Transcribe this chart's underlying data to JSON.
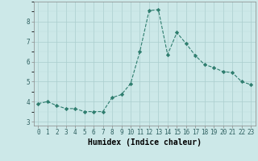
{
  "x": [
    0,
    1,
    2,
    3,
    4,
    5,
    6,
    7,
    8,
    9,
    10,
    11,
    12,
    13,
    14,
    15,
    16,
    17,
    18,
    19,
    20,
    21,
    22,
    23
  ],
  "y": [
    3.9,
    4.0,
    3.8,
    3.65,
    3.65,
    3.5,
    3.5,
    3.5,
    4.2,
    4.35,
    4.9,
    6.5,
    8.55,
    8.6,
    6.35,
    7.45,
    6.9,
    6.3,
    5.85,
    5.7,
    5.5,
    5.45,
    5.0,
    4.85
  ],
  "line_color": "#2e7d6e",
  "marker": "D",
  "marker_size": 2.2,
  "bg_color": "#cce8e8",
  "grid_color_major": "#aacece",
  "grid_color_minor": "#bbdddd",
  "xlabel": "Humidex (Indice chaleur)",
  "ylim": [
    2.8,
    9.0
  ],
  "xlim": [
    -0.5,
    23.5
  ],
  "yticks": [
    3,
    4,
    5,
    6,
    7,
    8
  ],
  "xticks": [
    0,
    1,
    2,
    3,
    4,
    5,
    6,
    7,
    8,
    9,
    10,
    11,
    12,
    13,
    14,
    15,
    16,
    17,
    18,
    19,
    20,
    21,
    22,
    23
  ],
  "tick_fontsize": 5.5,
  "label_fontsize": 7.0
}
